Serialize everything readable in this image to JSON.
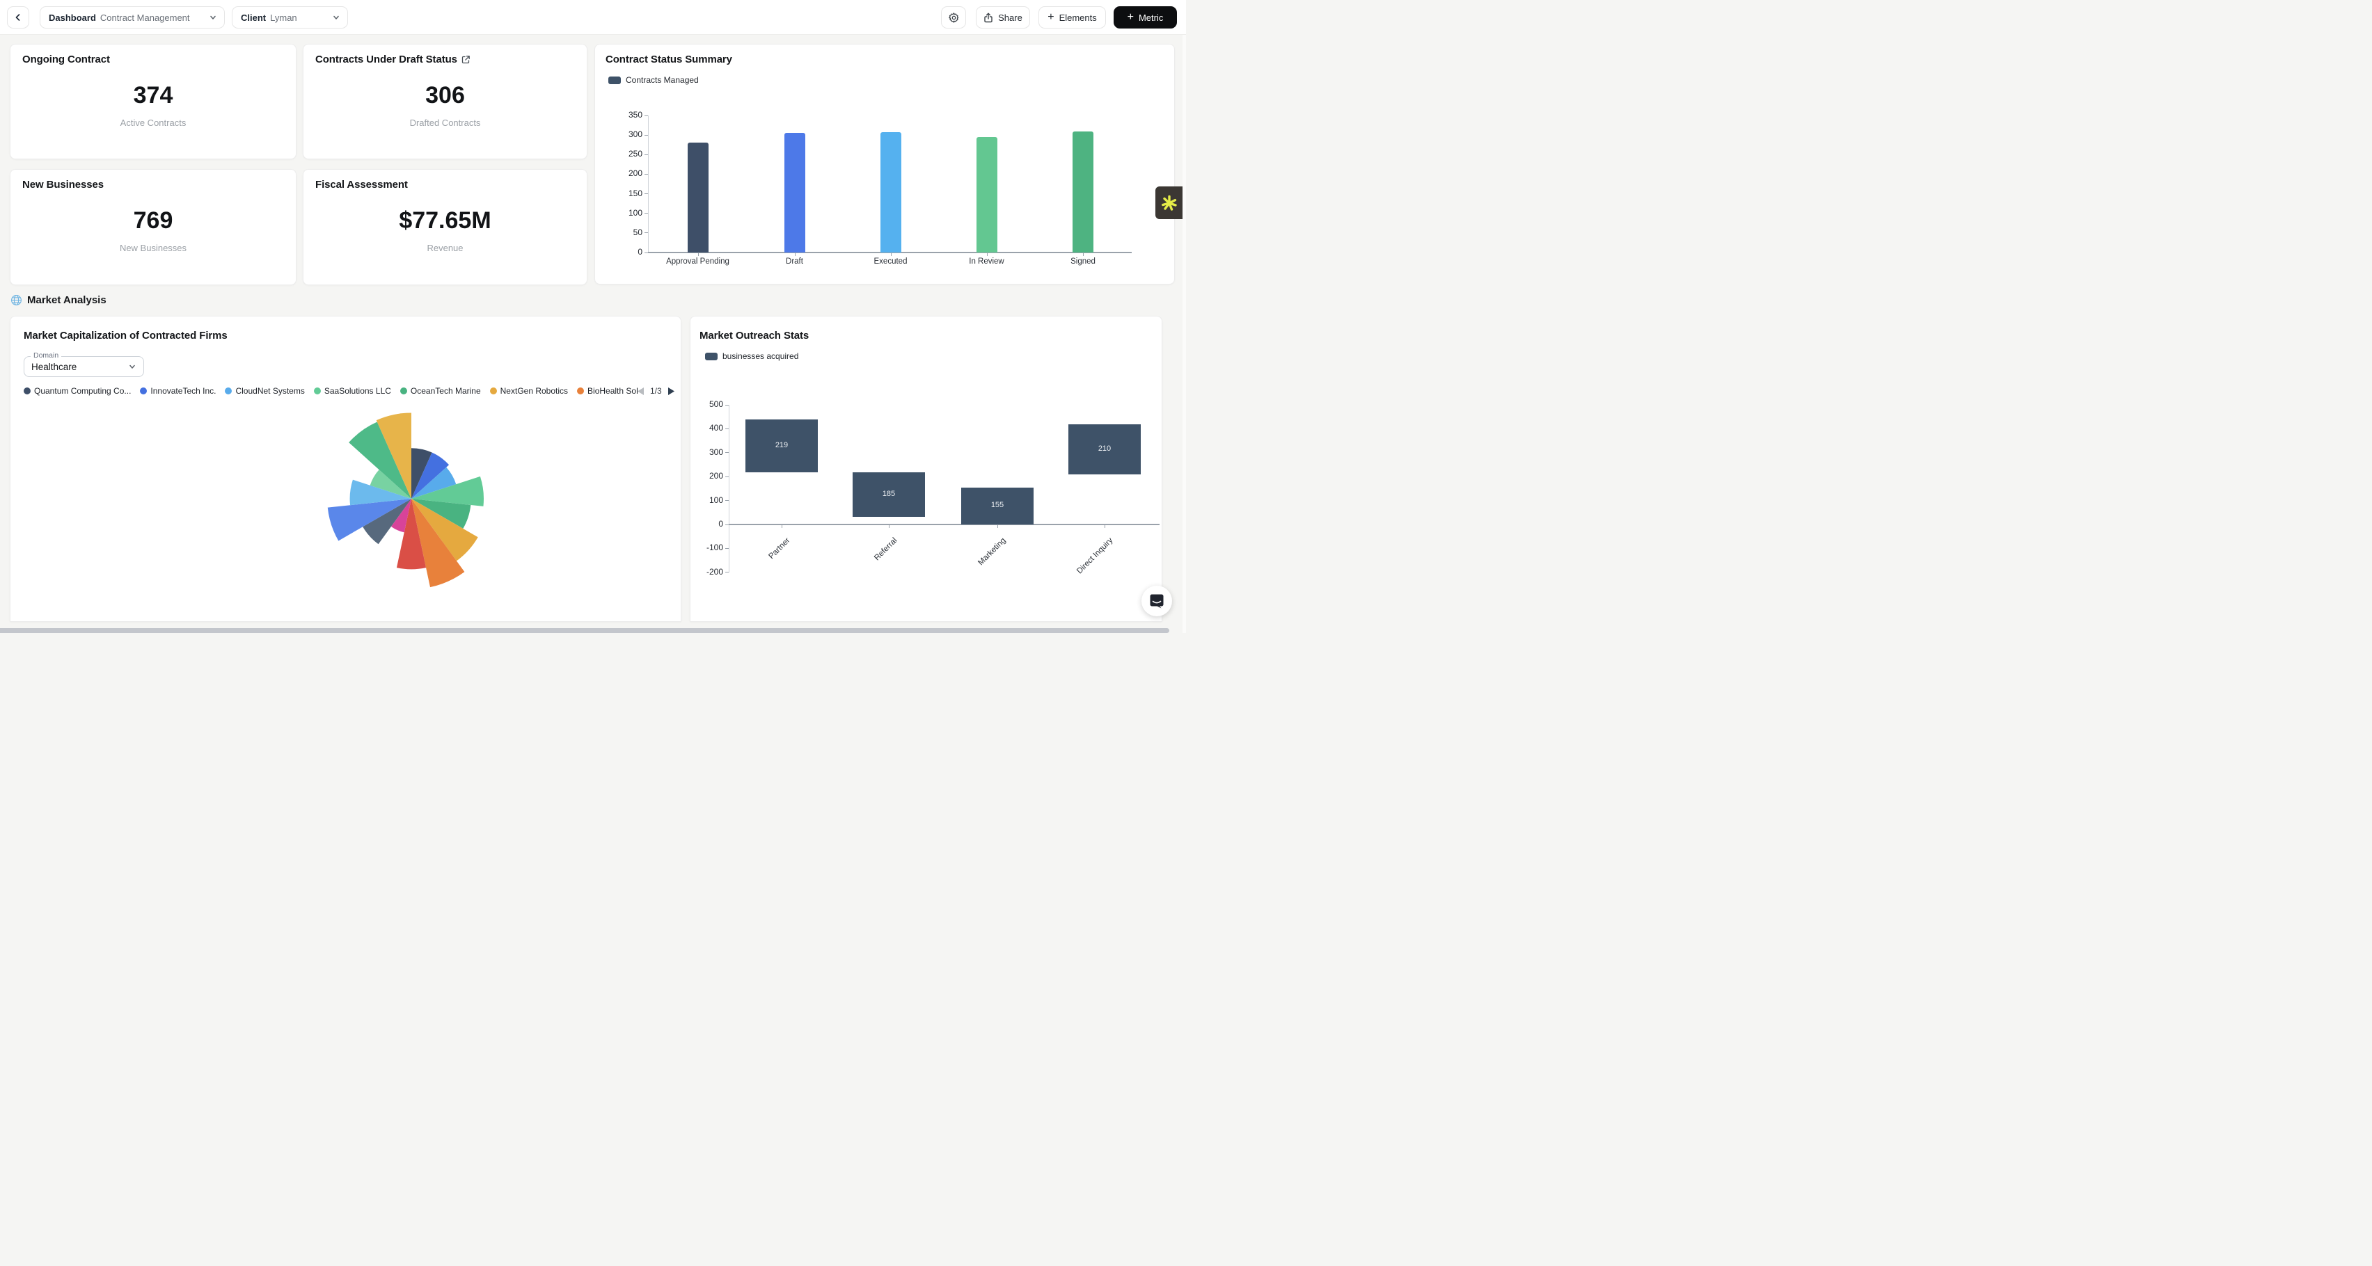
{
  "topbar": {
    "dashboard_label": "Dashboard",
    "dashboard_value": "Contract Management",
    "client_label": "Client",
    "client_value": "Lyman",
    "share_label": "Share",
    "elements_label": "Elements",
    "metric_label": "Metric"
  },
  "icons": {
    "plus_glyph": "+"
  },
  "section": {
    "title": "Market Analysis"
  },
  "stats": [
    {
      "title": "Ongoing Contract",
      "value": "374",
      "caption": "Active Contracts"
    },
    {
      "title": "Contracts Under Draft Status",
      "value": "306",
      "caption": "Drafted Contracts",
      "icon": "external-link-icon"
    },
    {
      "title": "New Businesses",
      "value": "769",
      "caption": "New Businesses"
    },
    {
      "title": "Fiscal Assessment",
      "value": "$77.65M",
      "caption": "Revenue"
    }
  ],
  "chart_data": [
    {
      "id": "contract-status-summary",
      "type": "bar",
      "title": "Contract Status Summary",
      "legend_label": "Contracts Managed",
      "legend_color": "#3e5268",
      "legend_position": "top-left",
      "categories": [
        "Approval Pending",
        "Draft",
        "Executed",
        "In Review",
        "Signed"
      ],
      "values": [
        280,
        305,
        307,
        295,
        310
      ],
      "bar_colors": [
        "#3e4f68",
        "#4d79e8",
        "#55b1ef",
        "#63c791",
        "#4eb381"
      ],
      "ylim": [
        0,
        350
      ],
      "ytick_step": 50,
      "grid": false
    },
    {
      "id": "market-capitalization-of-contracted-firms",
      "type": "polar-area",
      "title": "Market Capitalization of Contracted Firms",
      "domain_filter": {
        "label": "Domain",
        "value": "Healthcare"
      },
      "legend_pagination": "1/3",
      "legend_visible_items": [
        "Quantum Computing Co...",
        "InnovateTech Inc.",
        "CloudNet Systems",
        "SaaSolutions LLC",
        "OceanTech Marine",
        "NextGen Robotics",
        "BioHealth Sol"
      ],
      "segments": [
        {
          "label": "Quantum Computing Co...",
          "color": "#3e4f68",
          "value": 0.56
        },
        {
          "label": "InnovateTech Inc.",
          "color": "#4470e0",
          "value": 0.56
        },
        {
          "label": "CloudNet Systems",
          "color": "#58abeb",
          "value": 0.52
        },
        {
          "label": "SaaSolutions LLC",
          "color": "#62cb96",
          "value": 0.8
        },
        {
          "label": "OceanTech Marine",
          "color": "#49b381",
          "value": 0.66
        },
        {
          "label": "NextGen Robotics",
          "color": "#e5a93f",
          "value": 0.85
        },
        {
          "label": "BioHealth Sol",
          "color": "#e8813b",
          "value": 1.0
        },
        {
          "label": "",
          "color": "#da4f46",
          "value": 0.78
        },
        {
          "label": "",
          "color": "#d8439a",
          "value": 0.38
        },
        {
          "label": "",
          "color": "#57697d",
          "value": 0.62
        },
        {
          "label": "",
          "color": "#5a87ea",
          "value": 0.93
        },
        {
          "label": "",
          "color": "#6cbaed",
          "value": 0.68
        },
        {
          "label": "",
          "color": "#78d2a2",
          "value": 0.48
        },
        {
          "label": "",
          "color": "#4eba88",
          "value": 0.93
        },
        {
          "label": "",
          "color": "#e7b44a",
          "value": 0.95
        }
      ],
      "start_angle_deg": 0,
      "slice_angle_deg": 24
    },
    {
      "id": "market-outreach-stats",
      "type": "floating-bar",
      "title": "Market Outreach Stats",
      "legend_label": "businesses acquired",
      "legend_color": "#3e5268",
      "bar_color": "#3e5268",
      "categories": [
        "Partner",
        "Referral",
        "Marketing",
        "Direct Inquiry"
      ],
      "bars": [
        {
          "value_label": "219",
          "from": 219,
          "to": 438
        },
        {
          "value_label": "185",
          "from": 33,
          "to": 218
        },
        {
          "value_label": "155",
          "from": 0,
          "to": 155
        },
        {
          "value_label": "210",
          "from": 210,
          "to": 420
        }
      ],
      "ylim": [
        -200,
        500
      ],
      "ytick_step": 100,
      "xlabel_rotation_deg": -45,
      "grid": false
    }
  ]
}
